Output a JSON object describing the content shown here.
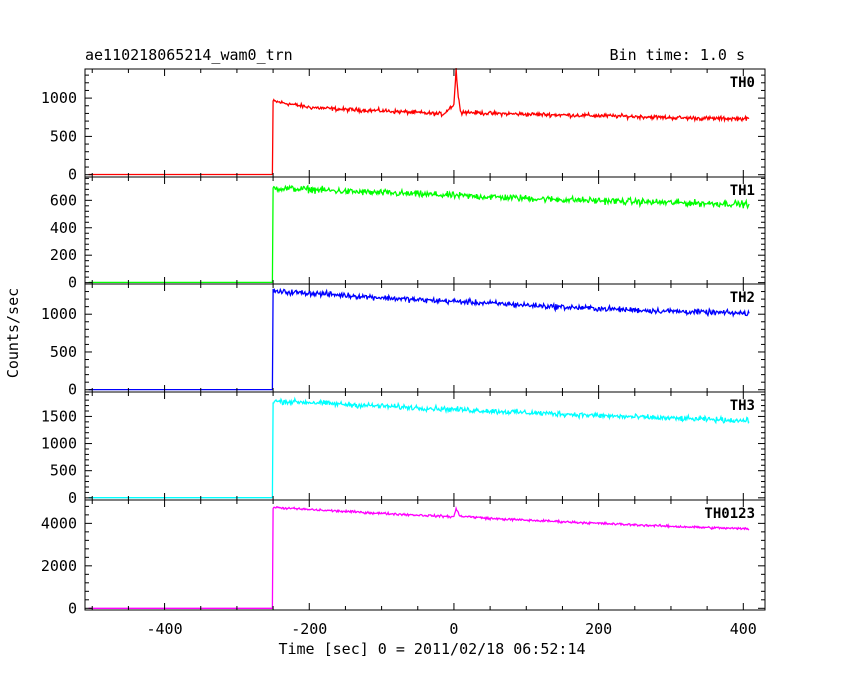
{
  "header": {
    "title": "ae110218065214_wam0_trn",
    "bin_time": "Bin time: 1.0 s"
  },
  "chart_data": {
    "type": "line",
    "xlabel": "Time [sec] 0 = 2011/02/18 06:52:14",
    "ylabel": "Counts/sec",
    "xlim": [
      -510,
      430
    ],
    "xticks": [
      -400,
      -200,
      0,
      200,
      400
    ],
    "panels": [
      {
        "name": "TH0",
        "color": "#ff0000",
        "ylim": [
          -30,
          1380
        ],
        "yticks": [
          0,
          500,
          1000
        ],
        "points": [
          [
            -505,
            2
          ],
          [
            -251,
            2
          ],
          [
            -250,
            960
          ],
          [
            -200,
            880
          ],
          [
            -150,
            850
          ],
          [
            -100,
            835
          ],
          [
            -50,
            810
          ],
          [
            -15,
            790
          ],
          [
            0,
            920
          ],
          [
            3,
            1380
          ],
          [
            6,
            1000
          ],
          [
            10,
            820
          ],
          [
            50,
            800
          ],
          [
            100,
            790
          ],
          [
            150,
            780
          ],
          [
            200,
            770
          ],
          [
            250,
            760
          ],
          [
            300,
            745
          ],
          [
            350,
            735
          ],
          [
            408,
            730
          ]
        ],
        "noise": 22
      },
      {
        "name": "TH1",
        "color": "#00ff00",
        "ylim": [
          -10,
          770
        ],
        "yticks": [
          0,
          200,
          400,
          600
        ],
        "points": [
          [
            -505,
            2
          ],
          [
            -251,
            2
          ],
          [
            -250,
            690
          ],
          [
            -200,
            680
          ],
          [
            -150,
            665
          ],
          [
            -100,
            655
          ],
          [
            -50,
            645
          ],
          [
            0,
            635
          ],
          [
            50,
            625
          ],
          [
            100,
            615
          ],
          [
            150,
            605
          ],
          [
            200,
            598
          ],
          [
            250,
            590
          ],
          [
            300,
            583
          ],
          [
            350,
            578
          ],
          [
            408,
            572
          ]
        ],
        "noise": 20
      },
      {
        "name": "TH2",
        "color": "#0000ff",
        "ylim": [
          -30,
          1400
        ],
        "yticks": [
          0,
          500,
          1000
        ],
        "points": [
          [
            -505,
            2
          ],
          [
            -251,
            2
          ],
          [
            -250,
            1300
          ],
          [
            -200,
            1280
          ],
          [
            -150,
            1250
          ],
          [
            -100,
            1220
          ],
          [
            -50,
            1190
          ],
          [
            0,
            1170
          ],
          [
            50,
            1145
          ],
          [
            100,
            1120
          ],
          [
            150,
            1095
          ],
          [
            200,
            1075
          ],
          [
            250,
            1055
          ],
          [
            300,
            1040
          ],
          [
            350,
            1025
          ],
          [
            408,
            1010
          ]
        ],
        "noise": 30
      },
      {
        "name": "TH3",
        "color": "#00ffff",
        "ylim": [
          -40,
          1950
        ],
        "yticks": [
          0,
          500,
          1000,
          1500
        ],
        "points": [
          [
            -505,
            2
          ],
          [
            -251,
            2
          ],
          [
            -250,
            1780
          ],
          [
            -200,
            1760
          ],
          [
            -150,
            1720
          ],
          [
            -100,
            1690
          ],
          [
            -50,
            1660
          ],
          [
            0,
            1630
          ],
          [
            50,
            1600
          ],
          [
            100,
            1570
          ],
          [
            150,
            1545
          ],
          [
            200,
            1515
          ],
          [
            250,
            1490
          ],
          [
            300,
            1465
          ],
          [
            350,
            1445
          ],
          [
            408,
            1420
          ]
        ],
        "noise": 40
      },
      {
        "name": "TH0123",
        "color": "#ff00ff",
        "ylim": [
          -80,
          5100
        ],
        "yticks": [
          0,
          2000,
          4000
        ],
        "points": [
          [
            -505,
            2
          ],
          [
            -251,
            2
          ],
          [
            -250,
            4750
          ],
          [
            -200,
            4650
          ],
          [
            -150,
            4560
          ],
          [
            -100,
            4470
          ],
          [
            -50,
            4390
          ],
          [
            0,
            4310
          ],
          [
            3,
            4700
          ],
          [
            8,
            4350
          ],
          [
            50,
            4230
          ],
          [
            100,
            4150
          ],
          [
            150,
            4080
          ],
          [
            200,
            4000
          ],
          [
            250,
            3930
          ],
          [
            300,
            3860
          ],
          [
            350,
            3800
          ],
          [
            408,
            3740
          ]
        ],
        "noise": 45
      }
    ]
  }
}
